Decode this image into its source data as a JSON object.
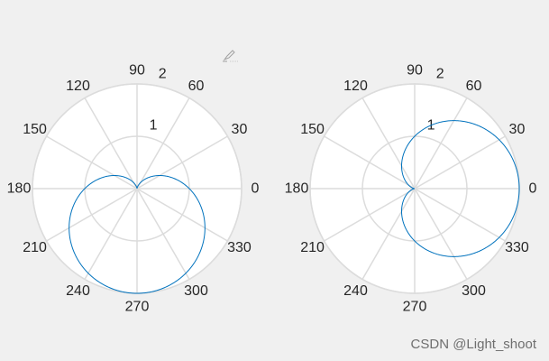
{
  "chart_data": [
    {
      "type": "line",
      "projection": "polar",
      "theta_ticks": [
        "0",
        "30",
        "60",
        "90",
        "120",
        "150",
        "180",
        "210",
        "240",
        "270",
        "300",
        "330"
      ],
      "r_ticks": [
        "1",
        "2"
      ],
      "rlim": [
        0,
        2
      ],
      "grid": true,
      "series": [
        {
          "equation": "r = 1 - sin(theta)",
          "color": "#0072bd"
        }
      ]
    },
    {
      "type": "line",
      "projection": "polar",
      "theta_ticks": [
        "0",
        "30",
        "60",
        "90",
        "120",
        "150",
        "180",
        "210",
        "240",
        "270",
        "300",
        "330"
      ],
      "r_ticks": [
        "1",
        "2"
      ],
      "rlim": [
        0,
        2
      ],
      "grid": true,
      "series": [
        {
          "equation": "r = 1 + cos(theta)",
          "color": "#0072bd"
        }
      ]
    }
  ],
  "toolbar": {
    "icon": "brush-icon"
  },
  "watermark": "CSDN @Light_shoot"
}
